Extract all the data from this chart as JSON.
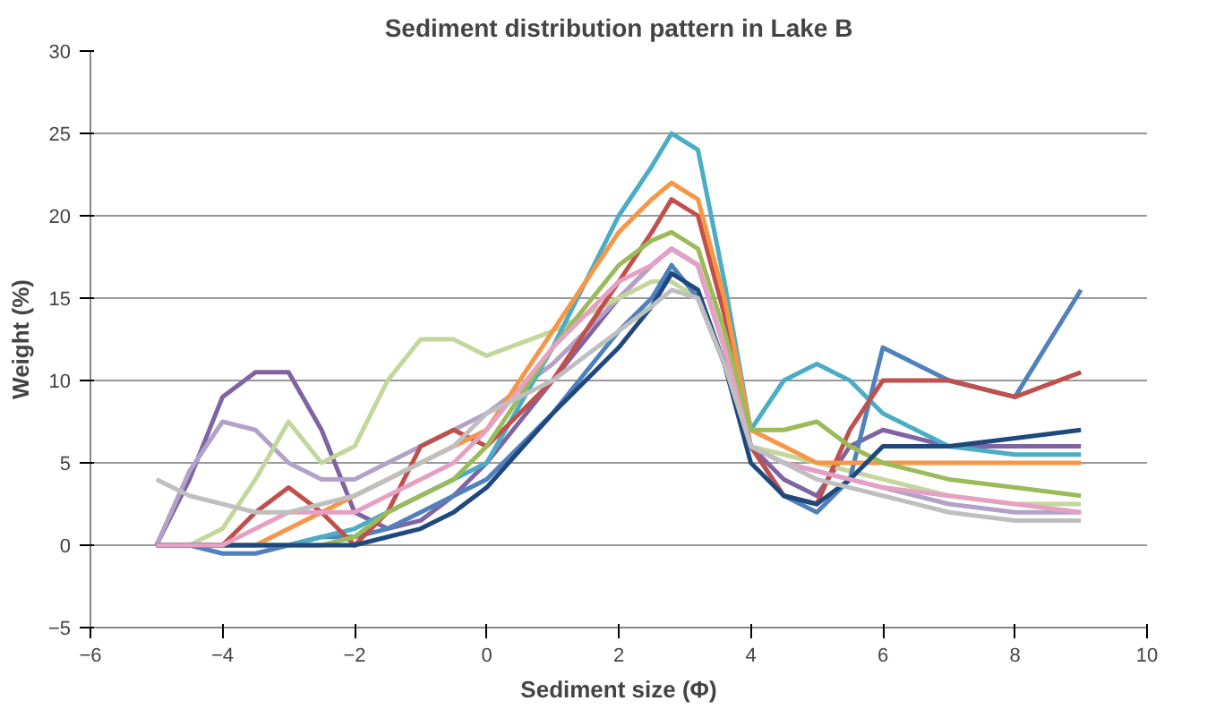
{
  "chart_data": {
    "type": "line",
    "title": "Sediment distribution pattern in Lake B",
    "xlabel": "Sediment size (Φ)",
    "ylabel": "Weight (%)",
    "x": [
      -5,
      -4.5,
      -4,
      -3.5,
      -3,
      -2.5,
      -2,
      -1.5,
      -1,
      -0.5,
      0,
      1,
      2,
      2.5,
      2.8,
      3.2,
      3.6,
      4,
      4.5,
      5,
      5.5,
      6,
      7,
      8,
      9
    ],
    "series": [
      {
        "color": "#8064a2",
        "values": [
          0,
          4,
          9,
          10.5,
          10.5,
          7,
          2,
          1,
          1.5,
          3,
          5,
          10,
          15,
          17,
          18,
          17,
          12,
          6,
          4,
          3,
          6,
          7,
          6,
          6,
          6
        ]
      },
      {
        "color": "#b3a2c7",
        "values": [
          0,
          4.5,
          7.5,
          7,
          5,
          4,
          4,
          5,
          6,
          7,
          8,
          11,
          15,
          17,
          18,
          17,
          12,
          6,
          5,
          4.5,
          4,
          3.5,
          2.5,
          2,
          2
        ]
      },
      {
        "color": "#c3d69b",
        "values": [
          0,
          0,
          1,
          4,
          7.5,
          5,
          6,
          10,
          12.5,
          12.5,
          11.5,
          13,
          15,
          16,
          16,
          15,
          11,
          6,
          5.5,
          5,
          4.5,
          4,
          3,
          2.5,
          2.5
        ]
      },
      {
        "color": "#4f81bd",
        "values": [
          0,
          0,
          -0.5,
          -0.5,
          0,
          0.5,
          0.5,
          1,
          2,
          3,
          4,
          8,
          13,
          15,
          17,
          15,
          11,
          6,
          3,
          2,
          4,
          12,
          10,
          9,
          15.5
        ]
      },
      {
        "color": "#4bacc6",
        "values": [
          0,
          0,
          0,
          0,
          0,
          0.5,
          1,
          2,
          3,
          4,
          5,
          12,
          20,
          23,
          25,
          24,
          16,
          7,
          10,
          11,
          10,
          8,
          6,
          5.5,
          5.5
        ]
      },
      {
        "color": "#c0504d",
        "values": [
          0,
          0,
          0,
          2,
          3.5,
          2,
          0,
          2,
          6,
          7,
          6,
          10,
          16,
          19,
          21,
          20,
          14,
          6,
          3,
          2.5,
          7,
          10,
          10,
          9,
          10.5
        ]
      },
      {
        "color": "#f79646",
        "values": [
          null,
          null,
          0,
          0,
          1,
          2,
          3,
          4,
          5,
          6,
          7,
          13,
          19,
          21,
          22,
          21,
          15,
          7,
          6,
          5,
          5,
          5,
          5,
          5,
          5
        ]
      },
      {
        "color": "#9bbb59",
        "values": [
          0,
          0,
          0,
          0,
          0,
          0,
          0.5,
          2,
          3,
          4,
          6,
          12,
          17,
          18.5,
          19,
          18,
          13,
          7,
          7,
          7.5,
          6,
          5,
          4,
          3.5,
          3
        ]
      },
      {
        "color": "#1f497d",
        "values": [
          0,
          0,
          0,
          0,
          0,
          0,
          0,
          0.5,
          1,
          2,
          3.5,
          8,
          12,
          14.5,
          16.5,
          15.5,
          11,
          5,
          3,
          2.5,
          4,
          6,
          6,
          6.5,
          7
        ]
      },
      {
        "color": "#e6a0c4",
        "values": [
          0,
          0,
          0,
          1,
          2,
          2,
          2,
          3,
          4,
          5,
          7,
          12,
          16,
          17,
          18,
          17,
          12,
          6,
          5,
          4.5,
          4,
          3.5,
          3,
          2.5,
          2
        ]
      },
      {
        "color": "#bfbfbf",
        "values": [
          4,
          3,
          2.5,
          2,
          2,
          2.5,
          3,
          4,
          5,
          6,
          8,
          10,
          13,
          14.5,
          15.5,
          15,
          11,
          6,
          5,
          4,
          3.5,
          3,
          2,
          1.5,
          1.5
        ]
      }
    ],
    "xlim": [
      -6,
      10
    ],
    "xticks": [
      -6,
      -4,
      -2,
      0,
      2,
      4,
      6,
      8,
      10
    ],
    "ylim": [
      -5,
      30
    ],
    "yticks": [
      -5,
      0,
      5,
      10,
      15,
      20,
      25,
      30
    ],
    "grid": "y",
    "marker": "none",
    "line_style": "solid"
  }
}
